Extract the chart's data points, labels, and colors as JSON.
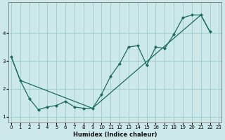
{
  "xlabel": "Humidex (Indice chaleur)",
  "bg_color": "#cce8e8",
  "grid_color": "#99cccc",
  "line_color": "#1a6b5e",
  "line1_x": [
    0,
    1,
    2,
    3,
    4,
    5,
    6,
    7,
    8,
    9,
    10,
    11,
    12,
    13,
    14,
    15,
    16,
    17,
    18,
    19,
    20,
    21,
    22
  ],
  "line1_y": [
    3.15,
    2.3,
    1.65,
    1.25,
    1.35,
    1.4,
    1.55,
    1.35,
    1.3,
    1.3,
    1.8,
    2.45,
    2.9,
    3.5,
    3.55,
    2.85,
    3.5,
    3.45,
    3.95,
    4.55,
    4.65,
    4.65,
    4.05
  ],
  "line2_x": [
    0,
    1,
    9,
    21,
    22
  ],
  "line2_y": [
    3.15,
    2.3,
    1.3,
    4.65,
    4.05
  ],
  "ylim": [
    0.8,
    5.1
  ],
  "xlim": [
    -0.3,
    23.3
  ],
  "yticks": [
    1,
    2,
    3,
    4
  ],
  "xticks": [
    0,
    1,
    2,
    3,
    4,
    5,
    6,
    7,
    8,
    9,
    10,
    11,
    12,
    13,
    14,
    15,
    16,
    17,
    18,
    19,
    20,
    21,
    22,
    23
  ],
  "tick_fontsize": 5.0,
  "xlabel_fontsize": 6.0
}
